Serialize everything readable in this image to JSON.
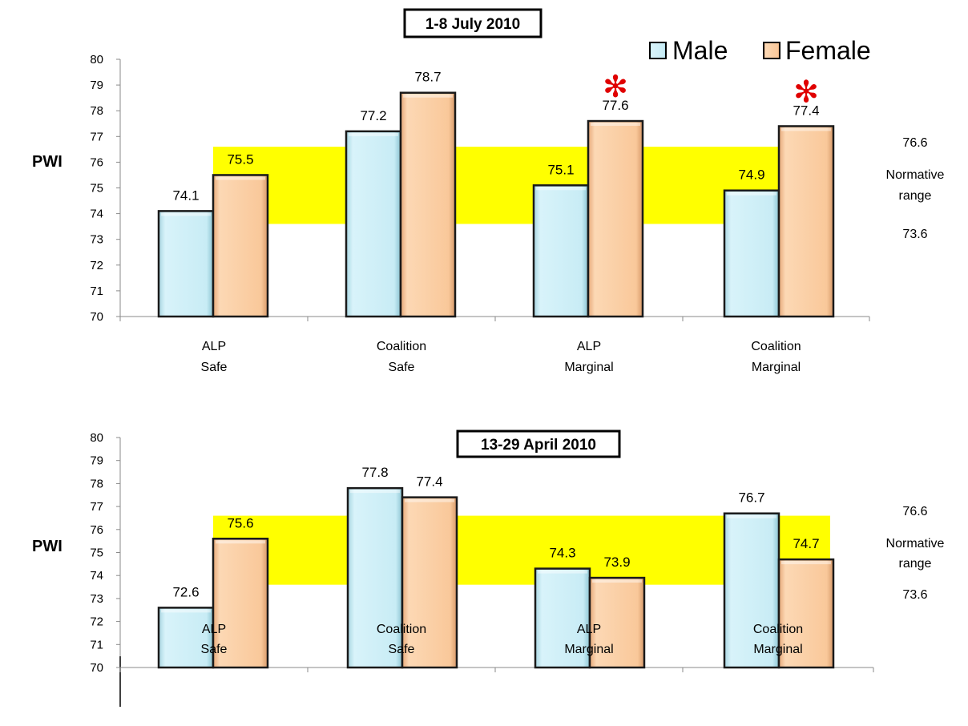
{
  "legend": {
    "items": [
      {
        "label": "Male",
        "color": "#c6ecf5"
      },
      {
        "label": "Female",
        "color": "#f9c89a"
      }
    ]
  },
  "chart_data": [
    {
      "type": "bar",
      "title": "1-8 July 2010",
      "ylabel": "PWI",
      "ylim": [
        70,
        80
      ],
      "yticks": [
        "70",
        "71",
        "72",
        "73",
        "74",
        "75",
        "76",
        "77",
        "78",
        "79",
        "80"
      ],
      "categories": [
        [
          "ALP",
          "Safe"
        ],
        [
          "Coalition",
          "Safe"
        ],
        [
          "ALP",
          "Marginal"
        ],
        [
          "Coalition",
          "Marginal"
        ]
      ],
      "series": [
        {
          "name": "Male",
          "values": [
            74.1,
            77.2,
            75.1,
            74.9
          ],
          "labels": [
            "74.1",
            "77.2",
            "75.1",
            "74.9"
          ]
        },
        {
          "name": "Female",
          "values": [
            75.5,
            78.7,
            77.6,
            77.4
          ],
          "labels": [
            "75.5",
            "78.7",
            "77.6",
            "77.4"
          ]
        }
      ],
      "significance_markers": [
        {
          "category_index": 2,
          "series": "Female",
          "symbol": "✻"
        },
        {
          "category_index": 3,
          "series": "Female",
          "symbol": "✻"
        }
      ],
      "normative_range": {
        "low": 73.6,
        "high": 76.6,
        "color": "#ffff00",
        "label_low": "73.6",
        "label_high": "76.6",
        "label_lines": [
          "Normative",
          "range"
        ]
      }
    },
    {
      "type": "bar",
      "title": "13-29 April 2010",
      "ylabel": "PWI",
      "ylim": [
        70,
        80
      ],
      "yticks": [
        "70",
        "71",
        "72",
        "73",
        "74",
        "75",
        "76",
        "77",
        "78",
        "79",
        "80"
      ],
      "categories": [
        [
          "ALP",
          "Safe"
        ],
        [
          "Coalition",
          "Safe"
        ],
        [
          "ALP",
          "Marginal"
        ],
        [
          "Coalition",
          "Marginal"
        ]
      ],
      "series": [
        {
          "name": "Male",
          "values": [
            72.6,
            77.8,
            74.3,
            76.7
          ],
          "labels": [
            "72.6",
            "77.8",
            "74.3",
            "76.7"
          ]
        },
        {
          "name": "Female",
          "values": [
            75.6,
            77.4,
            73.9,
            74.7
          ],
          "labels": [
            "75.6",
            "77.4",
            "73.9",
            "74.7"
          ]
        }
      ],
      "significance_markers": [],
      "normative_range": {
        "low": 73.6,
        "high": 76.6,
        "color": "#ffff00",
        "label_low": "73.6",
        "label_high": "76.6",
        "label_lines": [
          "Normative",
          "range"
        ]
      }
    }
  ]
}
